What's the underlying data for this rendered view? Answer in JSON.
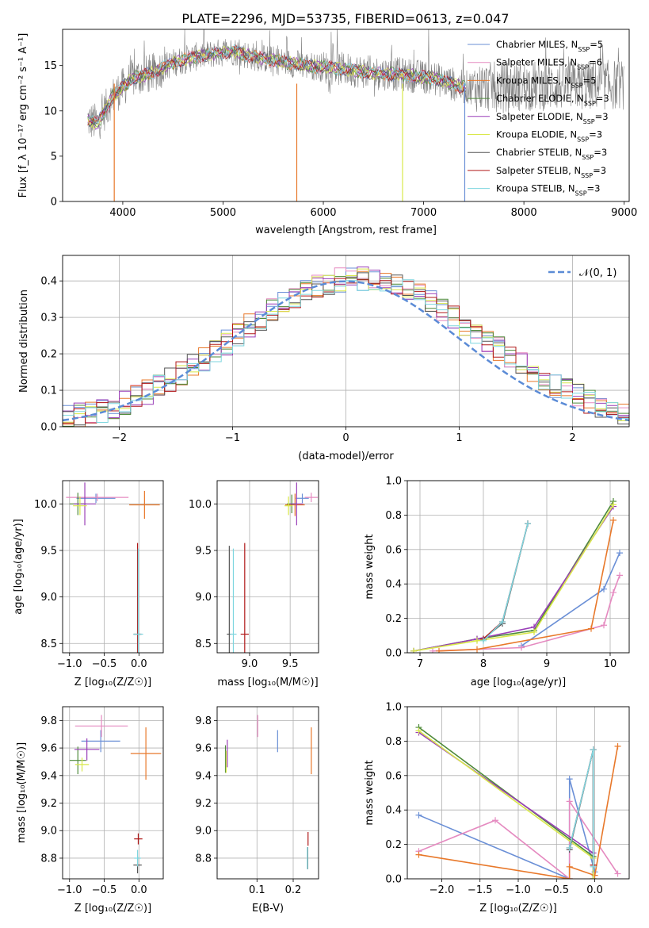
{
  "figure_title": "PLATE=2296, MJD=53735, FIBERID=0613, z=0.047",
  "models": [
    {
      "name": "Chabrier MILES",
      "nssp": "5",
      "color": "#6a8fd6"
    },
    {
      "name": "Salpeter MILES",
      "nssp": "6",
      "color": "#e58ac0"
    },
    {
      "name": "Kroupa MILES",
      "nssp": "5",
      "color": "#e8782a"
    },
    {
      "name": "Chabrier ELODIE",
      "nssp": "3",
      "color": "#4e8a3a"
    },
    {
      "name": "Salpeter ELODIE",
      "nssp": "3",
      "color": "#9a3fb8"
    },
    {
      "name": "Kroupa ELODIE",
      "nssp": "3",
      "color": "#d9e84a"
    },
    {
      "name": "Chabrier STELIB",
      "nssp": "3",
      "color": "#555555"
    },
    {
      "name": "Salpeter STELIB",
      "nssp": "3",
      "color": "#b01818"
    },
    {
      "name": "Kroupa STELIB",
      "nssp": "3",
      "color": "#7dd6df"
    }
  ],
  "chart_data": [
    {
      "id": "spectrum",
      "type": "line",
      "xlabel": "wavelength [Angstrom, rest frame]",
      "ylabel": "Flux [f_λ 10⁻¹⁷ erg cm⁻² s⁻¹ A⁻¹]",
      "xlim": [
        3400,
        9050
      ],
      "ylim": [
        0,
        19
      ],
      "xticks": [
        4000,
        5000,
        6000,
        7000,
        8000,
        9000
      ],
      "yticks": [
        0,
        5,
        10,
        15
      ],
      "grid": false,
      "legend": "upper-right",
      "data_color": "#808080",
      "continuum_x": [
        3650,
        3750,
        3900,
        4000,
        4100,
        4300,
        4500,
        4700,
        4900,
        5100,
        5300,
        5600,
        5900,
        6200,
        6500,
        6800,
        7100,
        7400
      ],
      "continuum_y": [
        9.0,
        8.6,
        11.6,
        12.6,
        13.6,
        14.2,
        15.3,
        15.9,
        16.3,
        16.6,
        16.0,
        15.4,
        14.9,
        14.6,
        14.2,
        14.0,
        13.6,
        12.6
      ],
      "model_x_end": [
        7420,
        7420,
        7420,
        7420,
        7420,
        7420,
        7420,
        7420,
        7420
      ]
    },
    {
      "id": "residuals",
      "type": "histogram",
      "xlabel": "(data-model)/error",
      "ylabel": "Normed distribution",
      "xlim": [
        -2.5,
        2.5
      ],
      "ylim": [
        0,
        0.47
      ],
      "xticks": [
        -2,
        -1,
        0,
        1,
        2
      ],
      "yticks": [
        0.0,
        0.1,
        0.2,
        0.3,
        0.4
      ],
      "grid": true,
      "legend": "upper-right",
      "legend_label": "𝒩(0, 1)",
      "gaussian": {
        "mu": 0,
        "sigma": 1,
        "color": "#5b8bd6"
      },
      "bin_width": 0.1,
      "bin_start": -2.5
    },
    {
      "id": "age-vs-Z",
      "type": "scatter",
      "xlabel": "Z [log₁₀(Z/Z☉)]",
      "ylabel": "age  [log₁₀(age/yr)]",
      "xlim": [
        -1.1,
        0.35
      ],
      "ylim": [
        8.4,
        10.25
      ],
      "xticks": [
        -1.0,
        -0.5,
        0.0
      ],
      "yticks": [
        8.5,
        9.0,
        9.5,
        10.0
      ],
      "grid": true,
      "points": [
        {
          "model": 0,
          "x": -0.62,
          "y": 10.06,
          "xerr": 0.28,
          "yerr": 0.05
        },
        {
          "model": 1,
          "x": -0.6,
          "y": 10.07,
          "xerr": 0.45,
          "yerr": 0.04
        },
        {
          "model": 2,
          "x": 0.08,
          "y": 9.99,
          "xerr": 0.22,
          "yerr": 0.15
        },
        {
          "model": 3,
          "x": -0.88,
          "y": 10.0,
          "xerr": 0.12,
          "yerr": 0.12
        },
        {
          "model": 4,
          "x": -0.78,
          "y": 10.0,
          "xerr": 0.16,
          "yerr": 0.23
        },
        {
          "model": 5,
          "x": -0.85,
          "y": 9.98,
          "xerr": 0.1,
          "yerr": 0.1
        },
        {
          "model": 6,
          "x": -0.02,
          "y": 8.6,
          "xerr": 0.06,
          "yerr": 0.9
        },
        {
          "model": 7,
          "x": -0.02,
          "y": 8.6,
          "xerr": 0.05,
          "yerr": 0.98
        },
        {
          "model": 8,
          "x": -0.01,
          "y": 8.6,
          "xerr": 0.07,
          "yerr": 0.92
        }
      ]
    },
    {
      "id": "age-vs-mass",
      "type": "scatter",
      "xlabel": "mass [log₁₀(M/M☉)]",
      "ylabel": "",
      "xlim": [
        8.6,
        9.85
      ],
      "ylim": [
        8.4,
        10.25
      ],
      "xticks": [
        9.0,
        9.5
      ],
      "yticks": [
        8.5,
        9.0,
        9.5,
        10.0
      ],
      "grid": true,
      "points": [
        {
          "model": 0,
          "x": 9.65,
          "y": 10.06,
          "xerr": 0.08,
          "yerr": 0.05
        },
        {
          "model": 1,
          "x": 9.76,
          "y": 10.07,
          "xerr": 0.08,
          "yerr": 0.05
        },
        {
          "model": 2,
          "x": 9.56,
          "y": 9.99,
          "xerr": 0.12,
          "yerr": 0.12
        },
        {
          "model": 3,
          "x": 9.52,
          "y": 10.0,
          "xerr": 0.06,
          "yerr": 0.1
        },
        {
          "model": 4,
          "x": 9.58,
          "y": 10.0,
          "xerr": 0.08,
          "yerr": 0.23
        },
        {
          "model": 5,
          "x": 9.48,
          "y": 9.98,
          "xerr": 0.05,
          "yerr": 0.1
        },
        {
          "model": 6,
          "x": 8.75,
          "y": 8.6,
          "xerr": 0.03,
          "yerr": 0.95
        },
        {
          "model": 7,
          "x": 8.94,
          "y": 8.6,
          "xerr": 0.05,
          "yerr": 0.98
        },
        {
          "model": 8,
          "x": 8.8,
          "y": 8.6,
          "xerr": 0.04,
          "yerr": 0.92
        }
      ]
    },
    {
      "id": "weight-vs-age",
      "type": "line",
      "xlabel": "age  [log₁₀(age/yr)]",
      "ylabel": "mass weight",
      "xlim": [
        6.8,
        10.3
      ],
      "ylim": [
        0,
        1.0
      ],
      "xticks": [
        7,
        8,
        9,
        10
      ],
      "yticks": [
        0.0,
        0.2,
        0.4,
        0.6,
        0.8,
        1.0
      ],
      "grid": true,
      "series": [
        {
          "model": 0,
          "x": [
            8.6,
            9.9,
            10.15
          ],
          "y": [
            0.04,
            0.37,
            0.58
          ]
        },
        {
          "model": 1,
          "x": [
            7.2,
            8.6,
            9.9,
            10.05,
            10.15
          ],
          "y": [
            0.01,
            0.03,
            0.16,
            0.35,
            0.45
          ]
        },
        {
          "model": 2,
          "x": [
            7.3,
            7.9,
            9.7,
            10.05
          ],
          "y": [
            0.01,
            0.02,
            0.14,
            0.77
          ]
        },
        {
          "model": 3,
          "x": [
            6.9,
            7.9,
            8.8,
            10.05
          ],
          "y": [
            0.01,
            0.08,
            0.13,
            0.88
          ]
        },
        {
          "model": 4,
          "x": [
            6.9,
            7.9,
            8.8,
            10.05
          ],
          "y": [
            0.01,
            0.08,
            0.15,
            0.85
          ]
        },
        {
          "model": 5,
          "x": [
            6.9,
            7.9,
            8.8,
            10.05
          ],
          "y": [
            0.01,
            0.07,
            0.12,
            0.86
          ]
        },
        {
          "model": 6,
          "x": [
            8.0,
            8.3,
            8.7
          ],
          "y": [
            0.08,
            0.17,
            0.75
          ]
        },
        {
          "model": 7,
          "x": [
            8.0,
            8.3,
            8.7
          ],
          "y": [
            0.08,
            0.18,
            0.75
          ]
        },
        {
          "model": 8,
          "x": [
            8.0,
            8.3,
            8.7
          ],
          "y": [
            0.07,
            0.18,
            0.75
          ]
        }
      ]
    },
    {
      "id": "mass-vs-Z",
      "type": "scatter",
      "xlabel": "Z [log₁₀(Z/Z☉)]",
      "ylabel": "mass [log₁₀(M/M☉)]",
      "xlim": [
        -1.1,
        0.35
      ],
      "ylim": [
        8.65,
        9.9
      ],
      "xticks": [
        -1.0,
        -0.5,
        0.0
      ],
      "yticks": [
        8.8,
        9.0,
        9.2,
        9.4,
        9.6,
        9.8
      ],
      "grid": true,
      "points": [
        {
          "model": 0,
          "x": -0.55,
          "y": 9.65,
          "xerr": 0.28,
          "yerr": 0.08
        },
        {
          "model": 1,
          "x": -0.54,
          "y": 9.76,
          "xerr": 0.38,
          "yerr": 0.08
        },
        {
          "model": 2,
          "x": 0.1,
          "y": 9.56,
          "xerr": 0.22,
          "yerr": 0.19
        },
        {
          "model": 3,
          "x": -0.88,
          "y": 9.51,
          "xerr": 0.12,
          "yerr": 0.1
        },
        {
          "model": 4,
          "x": -0.75,
          "y": 9.59,
          "xerr": 0.18,
          "yerr": 0.08
        },
        {
          "model": 5,
          "x": -0.82,
          "y": 9.48,
          "xerr": 0.1,
          "yerr": 0.05
        },
        {
          "model": 6,
          "x": -0.02,
          "y": 8.75,
          "xerr": 0.06,
          "yerr": 0.06
        },
        {
          "model": 7,
          "x": -0.01,
          "y": 8.94,
          "xerr": 0.06,
          "yerr": 0.04
        },
        {
          "model": 8,
          "x": -0.02,
          "y": 8.8,
          "xerr": 0.05,
          "yerr": 0.06
        }
      ]
    },
    {
      "id": "mass-vs-EBV",
      "type": "scatter",
      "xlabel": "E(B-V)",
      "ylabel": "",
      "xlim": [
        -0.01,
        0.27
      ],
      "ylim": [
        8.65,
        9.9
      ],
      "xticks": [
        0.1,
        0.2
      ],
      "yticks": [
        8.8,
        9.0,
        9.2,
        9.4,
        9.6,
        9.8
      ],
      "grid": true,
      "points": [
        {
          "model": 0,
          "x": 0.157,
          "y": 9.65,
          "xerr": 0.0,
          "yerr": 0.08
        },
        {
          "model": 1,
          "x": 0.102,
          "y": 9.76,
          "xerr": 0.0,
          "yerr": 0.08
        },
        {
          "model": 2,
          "x": 0.25,
          "y": 9.58,
          "xerr": 0.0,
          "yerr": 0.17
        },
        {
          "model": 3,
          "x": 0.013,
          "y": 9.52,
          "xerr": 0.0,
          "yerr": 0.1
        },
        {
          "model": 4,
          "x": 0.018,
          "y": 9.56,
          "xerr": 0.0,
          "yerr": 0.1
        },
        {
          "model": 5,
          "x": 0.015,
          "y": 9.5,
          "xerr": 0.0,
          "yerr": 0.08
        },
        {
          "model": 6,
          "x": 0.24,
          "y": 8.8,
          "xerr": 0.0,
          "yerr": 0.08
        },
        {
          "model": 7,
          "x": 0.241,
          "y": 8.94,
          "xerr": 0.0,
          "yerr": 0.05
        },
        {
          "model": 8,
          "x": 0.239,
          "y": 8.8,
          "xerr": 0.0,
          "yerr": 0.08
        }
      ]
    },
    {
      "id": "weight-vs-Z",
      "type": "line",
      "xlabel": "Z [log₁₀(Z/Z☉)]",
      "ylabel": "mass weight",
      "xlim": [
        -2.45,
        0.45
      ],
      "ylim": [
        0,
        1.0
      ],
      "xticks": [
        -2.0,
        -1.5,
        -1.0,
        -0.5,
        0.0
      ],
      "yticks": [
        0.0,
        0.2,
        0.4,
        0.6,
        0.8,
        1.0
      ],
      "grid": true,
      "series": [
        {
          "model": 0,
          "x": [
            -2.3,
            -0.33,
            -0.33,
            0.0
          ],
          "y": [
            0.37,
            0.0,
            0.58,
            0.04
          ]
        },
        {
          "model": 1,
          "x": [
            -2.3,
            -1.3,
            -0.33,
            -0.33,
            0.3
          ],
          "y": [
            0.16,
            0.34,
            0.0,
            0.45,
            0.03
          ]
        },
        {
          "model": 2,
          "x": [
            -2.3,
            -0.33,
            -0.33,
            0.0,
            0.3
          ],
          "y": [
            0.14,
            0.0,
            0.07,
            0.02,
            0.77
          ]
        },
        {
          "model": 3,
          "x": [
            -2.3,
            -0.02,
            -0.02
          ],
          "y": [
            0.88,
            0.13,
            0.0
          ]
        },
        {
          "model": 4,
          "x": [
            -2.3,
            -0.02,
            -0.02
          ],
          "y": [
            0.85,
            0.15,
            0.0
          ]
        },
        {
          "model": 5,
          "x": [
            -2.3,
            -0.02,
            -0.02
          ],
          "y": [
            0.86,
            0.12,
            0.0
          ]
        },
        {
          "model": 6,
          "x": [
            -0.33,
            -0.02,
            -0.02
          ],
          "y": [
            0.17,
            0.75,
            0.08
          ]
        },
        {
          "model": 7,
          "x": [
            -0.33,
            -0.02,
            -0.02
          ],
          "y": [
            0.18,
            0.75,
            0.08
          ]
        },
        {
          "model": 8,
          "x": [
            -0.33,
            -0.02,
            -0.02
          ],
          "y": [
            0.18,
            0.75,
            0.07
          ]
        }
      ]
    }
  ]
}
